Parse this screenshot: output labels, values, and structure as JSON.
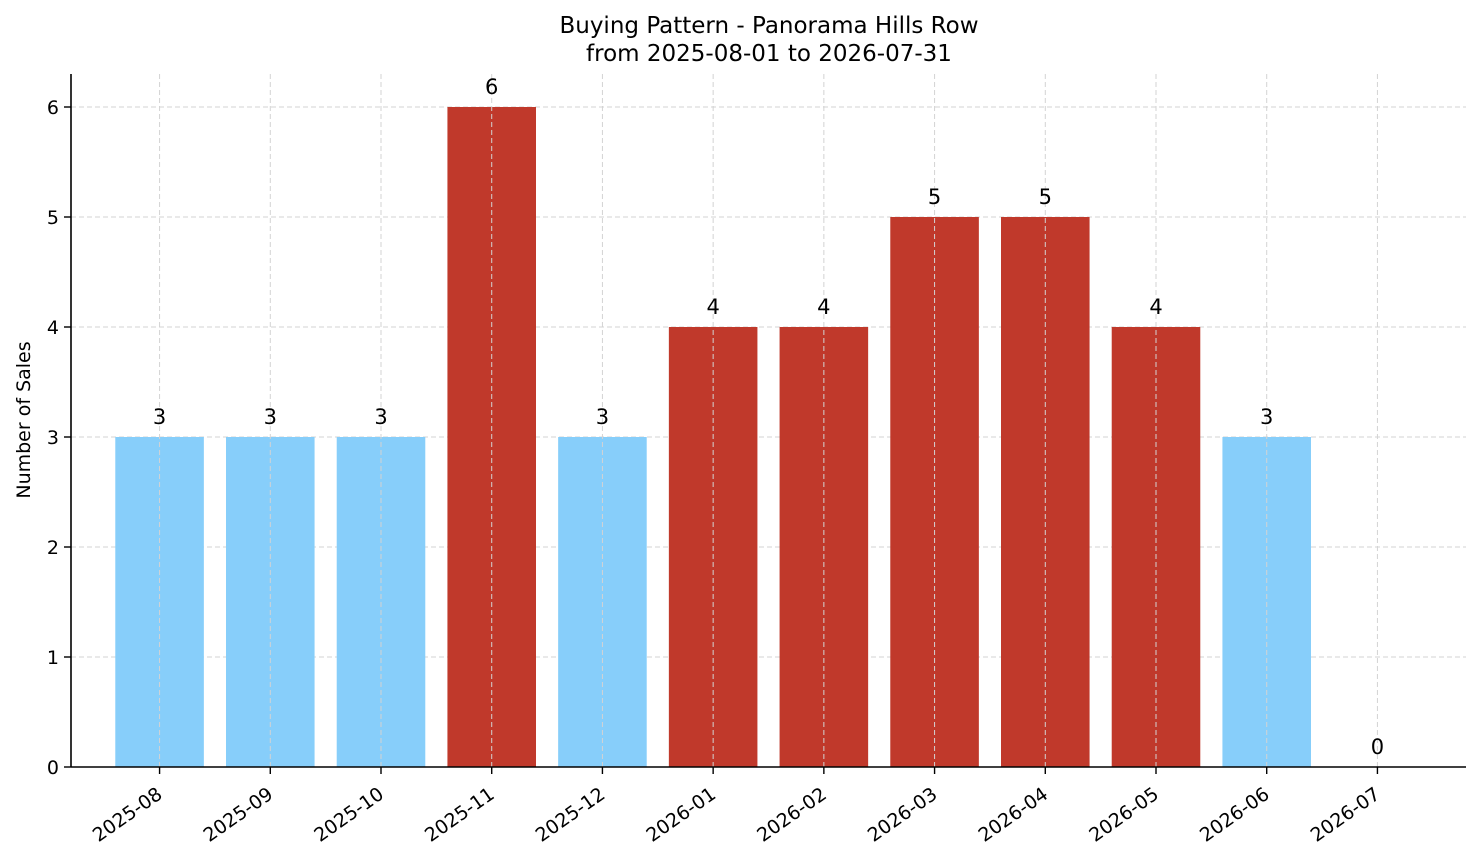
{
  "chart_data": {
    "type": "bar",
    "title": "Buying Pattern - Panorama Hills Row",
    "subtitle": "from 2025-08-01 to 2026-07-31",
    "xlabel": "",
    "ylabel": "Number of Sales",
    "categories": [
      "2025-08",
      "2025-09",
      "2025-10",
      "2025-11",
      "2025-12",
      "2026-01",
      "2026-02",
      "2026-03",
      "2026-04",
      "2026-05",
      "2026-06",
      "2026-07"
    ],
    "values": [
      3,
      3,
      3,
      6,
      3,
      4,
      4,
      5,
      5,
      4,
      3,
      0
    ],
    "highlight": [
      false,
      false,
      false,
      true,
      false,
      true,
      true,
      true,
      true,
      true,
      false,
      false
    ],
    "colors": {
      "normal": "#87cefa",
      "highlight": "#c0392b"
    },
    "ylim": [
      0,
      6.3
    ],
    "yticks": [
      0,
      1,
      2,
      3,
      4,
      5,
      6
    ],
    "grid": true,
    "legend": "none"
  }
}
